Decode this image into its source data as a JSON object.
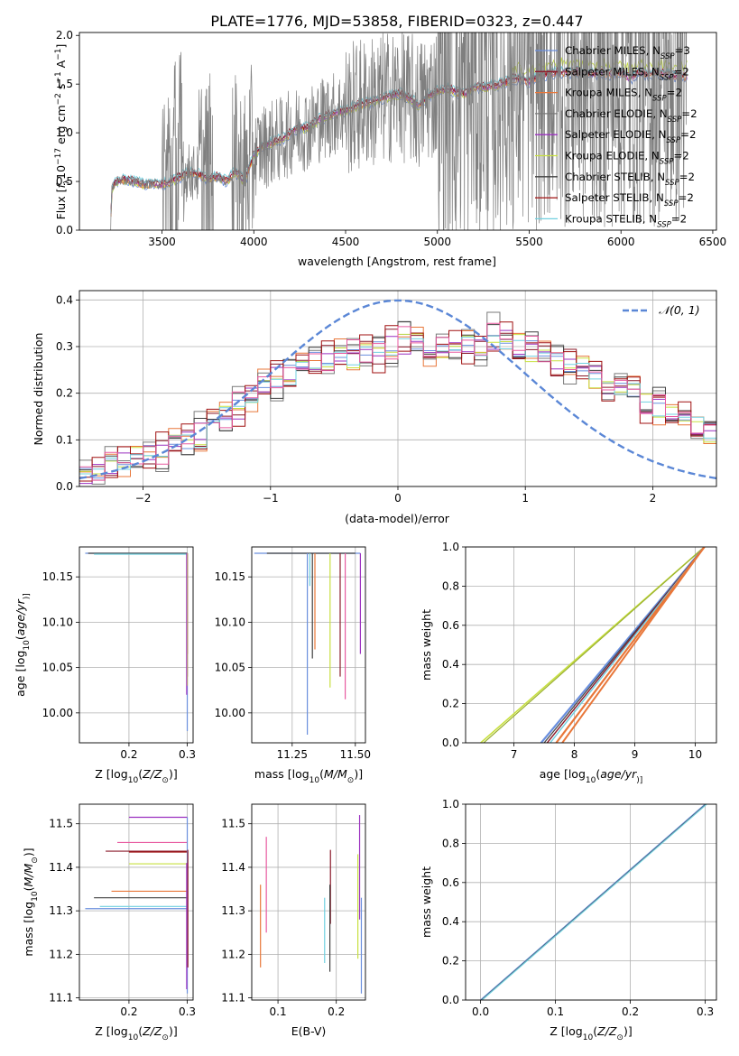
{
  "figure": {
    "title": "PLATE=1776, MJD=53858, FIBERID=0323, z=0.447"
  },
  "colors": {
    "miles_chabrier": "#6a8fde",
    "miles_salpeter": "#8a1a2a",
    "miles_kroupa": "#e8773a",
    "elodie_chabrier": "#7a7a7a",
    "elodie_salpeter": "#9b30c0",
    "elodie_kroupa": "#c8e040",
    "stelib_chabrier": "#404040",
    "stelib_salpeter": "#a01010",
    "stelib_kroupa": "#70d0e0",
    "data": "#7f7f7f",
    "gauss": "#5b87d6",
    "grid": "#b0b0b0"
  },
  "chart_data": [
    {
      "id": "spectrum",
      "type": "line",
      "xlabel": "wavelength [Angstrom, rest frame]",
      "ylabel_parts": [
        "Flux [",
        "f",
        "λ",
        "10",
        "−17",
        " erg cm",
        "−2",
        " s",
        "−1",
        " A",
        "−1",
        "]"
      ],
      "xlim": [
        3050,
        6520
      ],
      "ylim": [
        0,
        2.03
      ],
      "xticks": [
        3500,
        4000,
        4500,
        5000,
        5500,
        6000,
        6500
      ],
      "yticks": [
        0.0,
        0.5,
        1.0,
        1.5,
        2.0
      ],
      "ytick_labels": [
        "0.0",
        "0.5",
        "1.0",
        "1.5",
        "2.0"
      ],
      "grid": false,
      "legend_position": "top-right",
      "legend": [
        {
          "base": "Chabrier MILES, N",
          "sub": "SSP",
          "tail": "=3",
          "color": "#6a8fde"
        },
        {
          "base": "Salpeter MILES, N",
          "sub": "SSP",
          "tail": "=2",
          "color": "#8a1a2a"
        },
        {
          "base": "Kroupa MILES, N",
          "sub": "SSP",
          "tail": "=2",
          "color": "#e8773a"
        },
        {
          "base": "Chabrier ELODIE, N",
          "sub": "SSP",
          "tail": "=2",
          "color": "#7a7a7a"
        },
        {
          "base": "Salpeter ELODIE, N",
          "sub": "SSP",
          "tail": "=2",
          "color": "#9b30c0"
        },
        {
          "base": "Kroupa ELODIE, N",
          "sub": "SSP",
          "tail": "=2",
          "color": "#c8e040"
        },
        {
          "base": "Chabrier STELIB, N",
          "sub": "SSP",
          "tail": "=2",
          "color": "#404040"
        },
        {
          "base": "Salpeter STELIB, N",
          "sub": "SSP",
          "tail": "=2",
          "color": "#a01010"
        },
        {
          "base": "Kroupa STELIB, N",
          "sub": "SSP",
          "tail": "=2",
          "color": "#70d0e0"
        }
      ],
      "model_continuum": [
        [
          3220,
          0.0
        ],
        [
          3225,
          0.42
        ],
        [
          3250,
          0.5
        ],
        [
          3300,
          0.52
        ],
        [
          3350,
          0.5
        ],
        [
          3400,
          0.47
        ],
        [
          3450,
          0.48
        ],
        [
          3500,
          0.47
        ],
        [
          3550,
          0.5
        ],
        [
          3600,
          0.55
        ],
        [
          3650,
          0.6
        ],
        [
          3700,
          0.57
        ],
        [
          3750,
          0.52
        ],
        [
          3800,
          0.55
        ],
        [
          3850,
          0.5
        ],
        [
          3900,
          0.6
        ],
        [
          3950,
          0.5
        ],
        [
          4000,
          0.78
        ],
        [
          4050,
          0.86
        ],
        [
          4100,
          0.9
        ],
        [
          4150,
          0.93
        ],
        [
          4200,
          1.0
        ],
        [
          4250,
          1.05
        ],
        [
          4300,
          1.05
        ],
        [
          4350,
          1.13
        ],
        [
          4400,
          1.17
        ],
        [
          4450,
          1.2
        ],
        [
          4500,
          1.23
        ],
        [
          4550,
          1.27
        ],
        [
          4600,
          1.3
        ],
        [
          4650,
          1.32
        ],
        [
          4700,
          1.35
        ],
        [
          4750,
          1.38
        ],
        [
          4800,
          1.4
        ],
        [
          4850,
          1.35
        ],
        [
          4900,
          1.28
        ],
        [
          4950,
          1.38
        ],
        [
          5000,
          1.42
        ],
        [
          5050,
          1.45
        ],
        [
          5100,
          1.42
        ],
        [
          5150,
          1.4
        ],
        [
          5200,
          1.47
        ],
        [
          5250,
          1.47
        ],
        [
          5300,
          1.48
        ],
        [
          5350,
          1.5
        ],
        [
          5400,
          1.55
        ],
        [
          5450,
          1.55
        ],
        [
          5500,
          1.52
        ],
        [
          5550,
          1.58
        ],
        [
          5600,
          1.6
        ],
        [
          5650,
          1.62
        ],
        [
          5700,
          1.62
        ],
        [
          5750,
          1.62
        ],
        [
          5800,
          1.62
        ],
        [
          5850,
          1.6
        ],
        [
          5900,
          1.62
        ],
        [
          5950,
          1.6
        ],
        [
          6000,
          1.62
        ],
        [
          6050,
          1.55
        ],
        [
          6100,
          1.62
        ],
        [
          6150,
          1.6
        ],
        [
          6200,
          1.62
        ],
        [
          6250,
          1.6
        ],
        [
          6300,
          1.58
        ],
        [
          6350,
          1.58
        ]
      ]
    },
    {
      "id": "residuals",
      "type": "line",
      "xlabel": "(data-model)/error",
      "ylabel": "Normed distribution",
      "xlim": [
        -2.5,
        2.5
      ],
      "ylim": [
        0,
        0.42
      ],
      "xticks": [
        -2,
        -1,
        0,
        1,
        2
      ],
      "xtick_labels": [
        "−2",
        "−1",
        "0",
        "1",
        "2"
      ],
      "yticks": [
        0.0,
        0.1,
        0.2,
        0.3,
        0.4
      ],
      "ytick_labels": [
        "0.0",
        "0.1",
        "0.2",
        "0.3",
        "0.4"
      ],
      "grid": true,
      "legend_position": "top-right",
      "legend_label": "𝒩(0, 1)",
      "bins_start": -2.5,
      "bin_width": 0.1,
      "hist_base": [
        0.02,
        0.03,
        0.04,
        0.05,
        0.06,
        0.07,
        0.08,
        0.09,
        0.1,
        0.11,
        0.13,
        0.15,
        0.17,
        0.19,
        0.21,
        0.23,
        0.24,
        0.25,
        0.26,
        0.27,
        0.28,
        0.28,
        0.29,
        0.29,
        0.3,
        0.3,
        0.3,
        0.3,
        0.29,
        0.29,
        0.3,
        0.3,
        0.31,
        0.31,
        0.3,
        0.29,
        0.28,
        0.27,
        0.27,
        0.25,
        0.23,
        0.22,
        0.21,
        0.2,
        0.18,
        0.17,
        0.15,
        0.14,
        0.13,
        0.12
      ],
      "hist_offsets": [
        [
          0.02,
          -0.02,
          0.03,
          0.0,
          -0.01,
          0.02,
          -0.03,
          0.01,
          -0.02,
          0.04,
          0.01,
          -0.02,
          0.03,
          -0.01,
          0.02,
          -0.03,
          0.02,
          0.0,
          0.03,
          -0.02,
          0.01,
          0.03,
          -0.02,
          0.02,
          -0.03,
          0.04,
          0.0,
          -0.02,
          0.03,
          -0.01,
          0.02,
          -0.03,
          0.04,
          0.01,
          -0.02,
          0.03,
          -0.01,
          0.02,
          -0.03,
          0.01,
          0.02,
          -0.02,
          0.03,
          0.0,
          -0.02,
          0.03,
          -0.01,
          0.01,
          -0.02,
          0.02
        ],
        [
          -0.01,
          0.02,
          -0.02,
          0.03,
          0.01,
          -0.02,
          0.02,
          -0.01,
          0.03,
          -0.02,
          0.02,
          0.01,
          -0.03,
          0.02,
          -0.01,
          0.03,
          -0.02,
          0.02,
          -0.01,
          0.03,
          -0.02,
          0.01,
          0.02,
          -0.03,
          0.04,
          -0.01,
          0.02,
          -0.02,
          0.01,
          0.03,
          -0.02,
          0.02,
          -0.01,
          0.03,
          -0.02,
          0.01,
          0.02,
          -0.03,
          0.02,
          -0.01,
          0.03,
          -0.02,
          0.01,
          0.02,
          -0.03,
          0.02,
          -0.01,
          0.03,
          -0.02,
          0.01
        ],
        [
          0.01,
          0.0,
          0.02,
          -0.02,
          0.03,
          0.0,
          -0.02,
          0.03,
          0.01,
          -0.03,
          0.02,
          0.03,
          -0.01,
          -0.02,
          0.03,
          0.01,
          -0.02,
          0.03,
          0.0,
          -0.01,
          0.03,
          -0.03,
          0.02,
          0.01,
          -0.02,
          0.02,
          0.03,
          -0.03,
          -0.01,
          0.02,
          0.03,
          -0.02,
          0.01,
          -0.01,
          0.03,
          -0.02,
          0.02,
          0.01,
          -0.02,
          0.03,
          -0.01,
          0.01,
          -0.02,
          0.03,
          0.01,
          -0.03,
          0.02,
          0.0,
          0.02,
          -0.03
        ]
      ],
      "hist_colors": [
        "#6a8fde",
        "#8a1a2a",
        "#e8773a",
        "#7a7a7a",
        "#9b30c0",
        "#c8e040",
        "#404040",
        "#a01010",
        "#70d0e0",
        "#e85aa0"
      ]
    },
    {
      "id": "age_vs_Z",
      "type": "line",
      "xlabel_parts": [
        "Z [log",
        "10",
        "(",
        "Z/Z",
        "⊙",
        ")]"
      ],
      "ylabel_parts": [
        "age  [log",
        "10",
        "(",
        "age/yr",
        ")]"
      ],
      "xlim": [
        0.115,
        0.31
      ],
      "ylim": [
        9.967,
        10.183
      ],
      "xticks": [
        0.2,
        0.3
      ],
      "yticks": [
        10.0,
        10.05,
        10.1,
        10.15
      ],
      "ytick_labels": [
        "10.00",
        "10.05",
        "10.10",
        "10.15"
      ],
      "grid": true,
      "horizontal": [
        {
          "x0": 0.125,
          "x1": 0.3,
          "y": 10.176,
          "c": "#6a8fde"
        },
        {
          "x0": 0.13,
          "x1": 0.3,
          "y": 10.176,
          "c": "#404040"
        },
        {
          "x0": 0.14,
          "x1": 0.3,
          "y": 10.175,
          "c": "#70d0e0"
        }
      ],
      "vertical": [
        {
          "x": 0.3,
          "y0": 10.176,
          "y1": 9.98,
          "c": "#6a8fde"
        },
        {
          "x": 0.3,
          "y0": 10.176,
          "y1": 10.065,
          "c": "#a01010"
        },
        {
          "x": 0.3,
          "y0": 10.176,
          "y1": 10.04,
          "c": "#8a1a2a"
        },
        {
          "x": 0.3,
          "y0": 10.176,
          "y1": 10.03,
          "c": "#c8e040"
        },
        {
          "x": 0.299,
          "y0": 10.176,
          "y1": 10.02,
          "c": "#9b30c0"
        }
      ]
    },
    {
      "id": "age_vs_mass",
      "type": "line",
      "xlabel_parts": [
        "mass [log",
        "10",
        "(",
        "M/M",
        "⊙",
        ")]"
      ],
      "xlim": [
        11.09,
        11.54
      ],
      "ylim": [
        9.967,
        10.183
      ],
      "xticks": [
        11.25,
        11.5
      ],
      "xtick_labels": [
        "11.25",
        "11.50"
      ],
      "yticks": [
        10.0,
        10.05,
        10.1,
        10.15
      ],
      "ytick_labels": [
        "10.00",
        "10.05",
        "10.10",
        "10.15"
      ],
      "grid": true,
      "horizontal": [
        {
          "x0": 11.1,
          "x1": 11.52,
          "y": 10.176,
          "c": "#6a8fde"
        },
        {
          "x0": 11.15,
          "x1": 11.5,
          "y": 10.176,
          "c": "#404040"
        }
      ],
      "vertical": [
        {
          "x": 11.31,
          "y0": 10.176,
          "y1": 9.976,
          "c": "#6a8fde"
        },
        {
          "x": 11.32,
          "y0": 10.176,
          "y1": 10.14,
          "c": "#70d0e0"
        },
        {
          "x": 11.34,
          "y0": 10.176,
          "y1": 10.07,
          "c": "#e8773a"
        },
        {
          "x": 11.33,
          "y0": 10.176,
          "y1": 10.06,
          "c": "#404040"
        },
        {
          "x": 11.4,
          "y0": 10.176,
          "y1": 10.028,
          "c": "#c8e040"
        },
        {
          "x": 11.44,
          "y0": 10.176,
          "y1": 10.04,
          "c": "#8a1a2a"
        },
        {
          "x": 11.46,
          "y0": 10.176,
          "y1": 10.015,
          "c": "#e85aa0"
        },
        {
          "x": 11.52,
          "y0": 10.176,
          "y1": 10.065,
          "c": "#9b30c0"
        }
      ]
    },
    {
      "id": "weight_vs_age",
      "type": "line",
      "xlabel_parts": [
        "age  [log",
        "10",
        "(",
        "age/yr",
        ")]"
      ],
      "ylabel": "mass weight",
      "xlim": [
        6.2,
        10.35
      ],
      "ylim": [
        0,
        1.0
      ],
      "xticks": [
        7,
        8,
        9,
        10
      ],
      "yticks": [
        0.0,
        0.2,
        0.4,
        0.6,
        0.8,
        1.0
      ],
      "ytick_labels": [
        "0.0",
        "0.2",
        "0.4",
        "0.6",
        "0.8",
        "1.0"
      ],
      "grid": true,
      "lines": [
        {
          "x0": 6.45,
          "x1": 10.15,
          "c": "#c8e040",
          "w": 1.6
        },
        {
          "x0": 6.5,
          "x1": 10.15,
          "c": "#9ab030",
          "w": 1.2
        },
        {
          "x0": 7.45,
          "x1": 10.15,
          "c": "#6a8fde",
          "w": 2.2
        },
        {
          "x0": 7.5,
          "x1": 10.15,
          "c": "#404040",
          "w": 1.2
        },
        {
          "x0": 7.55,
          "x1": 10.15,
          "c": "#8a1a2a",
          "w": 1.4
        },
        {
          "x0": 7.6,
          "x1": 10.15,
          "c": "#70d0e0",
          "w": 1.4
        },
        {
          "x0": 7.7,
          "x1": 10.15,
          "c": "#e8773a",
          "w": 2.2
        },
        {
          "x0": 7.8,
          "x1": 10.15,
          "c": "#e8773a",
          "w": 2.0
        }
      ]
    },
    {
      "id": "mass_vs_Z",
      "type": "line",
      "xlabel_parts": [
        "Z [log",
        "10",
        "(",
        "Z/Z",
        "⊙",
        ")]"
      ],
      "ylabel_parts": [
        "mass [log",
        "10",
        "(",
        "M/M",
        "⊙",
        ")]"
      ],
      "xlim": [
        0.115,
        0.31
      ],
      "ylim": [
        11.095,
        11.545
      ],
      "xticks": [
        0.2,
        0.3
      ],
      "yticks": [
        11.1,
        11.2,
        11.3,
        11.4,
        11.5
      ],
      "ytick_labels": [
        "11.1",
        "11.2",
        "11.3",
        "11.4",
        "11.5"
      ],
      "grid": true,
      "horizontal": [
        {
          "x0": 0.2,
          "x1": 0.3,
          "y": 11.515,
          "c": "#9b30c0"
        },
        {
          "x0": 0.18,
          "x1": 0.3,
          "y": 11.457,
          "c": "#e85aa0"
        },
        {
          "x0": 0.16,
          "x1": 0.3,
          "y": 11.437,
          "c": "#8a1a2a"
        },
        {
          "x0": 0.2,
          "x1": 0.3,
          "y": 11.435,
          "c": "#a01010"
        },
        {
          "x0": 0.2,
          "x1": 0.3,
          "y": 11.408,
          "c": "#c8e040"
        },
        {
          "x0": 0.17,
          "x1": 0.3,
          "y": 11.345,
          "c": "#e8773a"
        },
        {
          "x0": 0.14,
          "x1": 0.3,
          "y": 11.33,
          "c": "#404040"
        },
        {
          "x0": 0.15,
          "x1": 0.3,
          "y": 11.31,
          "c": "#70d0e0"
        },
        {
          "x0": 0.125,
          "x1": 0.3,
          "y": 11.305,
          "c": "#6a8fde"
        }
      ],
      "vertical": [
        {
          "x": 0.3,
          "y0": 11.515,
          "y1": 11.11,
          "c": "#6a8fde"
        },
        {
          "x": 0.301,
          "y0": 11.44,
          "y1": 11.17,
          "c": "#8a1a2a"
        },
        {
          "x": 0.299,
          "y0": 11.41,
          "y1": 11.12,
          "c": "#9b30c0"
        }
      ]
    },
    {
      "id": "mass_vs_EBV",
      "type": "line",
      "xlabel": "E(B-V)",
      "xlim": [
        0.055,
        0.25
      ],
      "ylim": [
        11.095,
        11.545
      ],
      "xticks": [
        0.1,
        0.2
      ],
      "yticks": [
        11.1,
        11.2,
        11.3,
        11.4,
        11.5
      ],
      "ytick_labels": [
        "11.1",
        "11.2",
        "11.3",
        "11.4",
        "11.5"
      ],
      "grid": true,
      "vertical": [
        {
          "x": 0.07,
          "y0": 11.36,
          "y1": 11.17,
          "c": "#e8773a"
        },
        {
          "x": 0.08,
          "y0": 11.47,
          "y1": 11.25,
          "c": "#e85aa0"
        },
        {
          "x": 0.18,
          "y0": 11.33,
          "y1": 11.18,
          "c": "#70d0e0"
        },
        {
          "x": 0.19,
          "y0": 11.44,
          "y1": 11.27,
          "c": "#8a1a2a"
        },
        {
          "x": 0.189,
          "y0": 11.36,
          "y1": 11.16,
          "c": "#404040"
        },
        {
          "x": 0.237,
          "y0": 11.43,
          "y1": 11.19,
          "c": "#c8e040"
        },
        {
          "x": 0.24,
          "y0": 11.52,
          "y1": 11.28,
          "c": "#9b30c0"
        },
        {
          "x": 0.243,
          "y0": 11.33,
          "y1": 11.11,
          "c": "#6a8fde"
        }
      ]
    },
    {
      "id": "weight_vs_Z",
      "type": "line",
      "xlabel_parts": [
        "Z [log",
        "10",
        "(",
        "Z/Z",
        "⊙",
        ")]"
      ],
      "ylabel": "mass weight",
      "xlim": [
        -0.02,
        0.315
      ],
      "ylim": [
        0,
        1.0
      ],
      "xticks": [
        0.0,
        0.1,
        0.2,
        0.3
      ],
      "xtick_labels": [
        "0.0",
        "0.1",
        "0.2",
        "0.3"
      ],
      "yticks": [
        0.0,
        0.2,
        0.4,
        0.6,
        0.8,
        1.0
      ],
      "ytick_labels": [
        "0.0",
        "0.2",
        "0.4",
        "0.6",
        "0.8",
        "1.0"
      ],
      "grid": true,
      "lines": [
        {
          "x0": 0.0,
          "x1": 0.3,
          "c": "#6a8fde",
          "w": 1.4
        },
        {
          "x0": 0.001,
          "x1": 0.301,
          "c": "#404040",
          "w": 1.0
        },
        {
          "x0": 0.002,
          "x1": 0.302,
          "c": "#70d0e0",
          "w": 1.2
        }
      ]
    }
  ]
}
